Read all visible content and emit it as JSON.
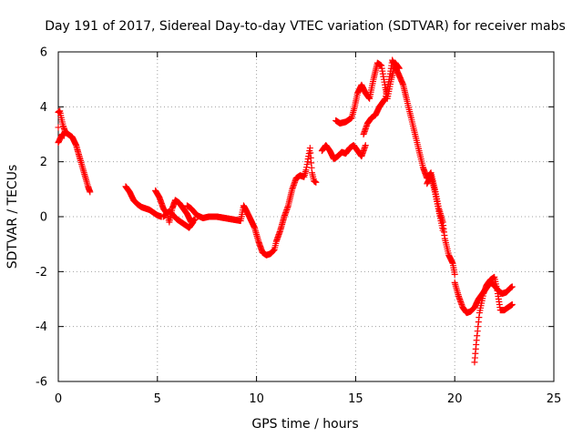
{
  "chart_data": {
    "type": "scatter",
    "title": "Day 191 of 2017, Sidereal Day-to-day VTEC variation (SDTVAR) for receiver mabs",
    "xlabel": "GPS time / hours",
    "ylabel": "SDTVAR / TECUs",
    "xlim": [
      0,
      25
    ],
    "ylim": [
      -6,
      6
    ],
    "xticks": [
      "0",
      "5",
      "10",
      "15",
      "20",
      "25"
    ],
    "yticks": [
      "-6",
      "-4",
      "-2",
      "0",
      "2",
      "4",
      "6"
    ],
    "grid": true,
    "marker": "+",
    "color": "#ff0000",
    "series": [
      {
        "segments": [
          [
            [
              0.0,
              2.7
            ],
            [
              0.0,
              3.8
            ],
            [
              0.08,
              3.85
            ],
            [
              0.15,
              3.6
            ],
            [
              0.25,
              3.3
            ],
            [
              0.35,
              3.1
            ],
            [
              0.5,
              3.0
            ],
            [
              0.7,
              2.9
            ],
            [
              0.9,
              2.6
            ],
            [
              1.1,
              2.1
            ],
            [
              1.3,
              1.6
            ],
            [
              1.5,
              1.1
            ],
            [
              1.6,
              0.9
            ]
          ],
          [
            [
              0.0,
              2.7
            ],
            [
              0.1,
              2.85
            ],
            [
              0.2,
              3.0
            ],
            [
              0.3,
              2.95
            ]
          ],
          [
            [
              3.4,
              1.1
            ],
            [
              3.6,
              0.9
            ],
            [
              3.8,
              0.6
            ],
            [
              4.0,
              0.45
            ],
            [
              4.2,
              0.35
            ],
            [
              4.4,
              0.3
            ],
            [
              4.6,
              0.25
            ],
            [
              4.8,
              0.15
            ],
            [
              5.0,
              0.05
            ],
            [
              5.2,
              0.0
            ]
          ],
          [
            [
              4.9,
              0.95
            ],
            [
              5.1,
              0.7
            ],
            [
              5.3,
              0.3
            ],
            [
              5.5,
              0.1
            ],
            [
              5.6,
              -0.2
            ],
            [
              5.75,
              0.3
            ],
            [
              5.9,
              0.6
            ],
            [
              6.1,
              0.5
            ],
            [
              6.3,
              0.3
            ],
            [
              6.5,
              0.1
            ],
            [
              6.7,
              -0.2
            ],
            [
              6.9,
              -0.1
            ]
          ],
          [
            [
              5.3,
              0.0
            ],
            [
              5.6,
              0.2
            ],
            [
              6.0,
              -0.1
            ],
            [
              6.4,
              -0.3
            ],
            [
              6.6,
              -0.4
            ],
            [
              6.8,
              -0.2
            ]
          ],
          [
            [
              6.5,
              0.4
            ],
            [
              6.7,
              0.3
            ],
            [
              7.0,
              0.05
            ],
            [
              7.3,
              -0.05
            ],
            [
              7.6,
              0.0
            ],
            [
              8.0,
              0.0
            ],
            [
              8.4,
              -0.05
            ],
            [
              8.8,
              -0.1
            ],
            [
              9.2,
              -0.15
            ],
            [
              9.35,
              0.4
            ],
            [
              9.5,
              0.2
            ],
            [
              9.7,
              -0.1
            ],
            [
              9.9,
              -0.4
            ]
          ],
          [
            [
              9.9,
              -0.4
            ],
            [
              10.1,
              -0.9
            ],
            [
              10.3,
              -1.3
            ],
            [
              10.5,
              -1.4
            ],
            [
              10.7,
              -1.35
            ],
            [
              10.9,
              -1.2
            ],
            [
              11.0,
              -0.9
            ],
            [
              11.2,
              -0.5
            ],
            [
              11.4,
              0.0
            ],
            [
              11.6,
              0.4
            ],
            [
              11.8,
              1.0
            ],
            [
              12.0,
              1.4
            ],
            [
              12.2,
              1.5
            ],
            [
              12.4,
              1.45
            ],
            [
              12.5,
              1.7
            ],
            [
              12.6,
              2.1
            ],
            [
              12.7,
              2.5
            ],
            [
              12.8,
              1.6
            ],
            [
              12.9,
              1.3
            ],
            [
              13.0,
              1.25
            ]
          ],
          [
            [
              13.3,
              2.4
            ],
            [
              13.5,
              2.6
            ],
            [
              13.7,
              2.4
            ],
            [
              13.9,
              2.1
            ],
            [
              14.1,
              2.2
            ],
            [
              14.3,
              2.35
            ],
            [
              14.5,
              2.3
            ],
            [
              14.7,
              2.5
            ],
            [
              14.9,
              2.6
            ],
            [
              15.1,
              2.4
            ],
            [
              15.3,
              2.2
            ],
            [
              15.5,
              2.6
            ]
          ],
          [
            [
              14.0,
              3.5
            ],
            [
              14.2,
              3.4
            ],
            [
              14.5,
              3.45
            ],
            [
              14.8,
              3.6
            ],
            [
              14.95,
              4.0
            ],
            [
              15.1,
              4.5
            ],
            [
              15.3,
              4.8
            ],
            [
              15.5,
              4.5
            ],
            [
              15.7,
              4.3
            ],
            [
              15.9,
              5.0
            ],
            [
              16.1,
              5.6
            ],
            [
              16.3,
              5.5
            ],
            [
              16.5,
              4.7
            ],
            [
              16.6,
              4.3
            ],
            [
              16.8,
              5.0
            ],
            [
              17.0,
              5.6
            ],
            [
              17.2,
              5.4
            ]
          ],
          [
            [
              15.4,
              3.0
            ],
            [
              15.6,
              3.4
            ],
            [
              15.8,
              3.6
            ],
            [
              16.0,
              3.7
            ],
            [
              16.2,
              4.0
            ],
            [
              16.5,
              4.3
            ],
            [
              16.7,
              5.0
            ],
            [
              16.85,
              5.7
            ],
            [
              17.1,
              5.3
            ],
            [
              17.4,
              4.8
            ],
            [
              17.6,
              4.2
            ],
            [
              17.8,
              3.6
            ],
            [
              18.0,
              3.0
            ],
            [
              18.2,
              2.4
            ],
            [
              18.4,
              1.8
            ],
            [
              18.6,
              1.4
            ],
            [
              18.8,
              1.6
            ],
            [
              19.0,
              1.0
            ],
            [
              19.2,
              0.3
            ],
            [
              19.4,
              -0.2
            ],
            [
              19.5,
              -0.8
            ],
            [
              19.7,
              -1.4
            ],
            [
              19.9,
              -1.7
            ],
            [
              20.0,
              -2.1
            ]
          ],
          [
            [
              18.6,
              1.2
            ],
            [
              18.8,
              1.5
            ],
            [
              19.0,
              0.9
            ],
            [
              19.2,
              0.2
            ],
            [
              19.4,
              -0.5
            ]
          ],
          [
            [
              20.0,
              -2.4
            ],
            [
              20.2,
              -2.9
            ],
            [
              20.4,
              -3.3
            ],
            [
              20.6,
              -3.5
            ],
            [
              20.8,
              -3.45
            ],
            [
              21.0,
              -3.3
            ],
            [
              21.2,
              -3.0
            ],
            [
              21.4,
              -2.8
            ],
            [
              21.6,
              -2.6
            ],
            [
              21.8,
              -2.4
            ],
            [
              22.0,
              -2.5
            ],
            [
              22.2,
              -2.7
            ],
            [
              22.4,
              -2.8
            ],
            [
              22.6,
              -2.75
            ],
            [
              22.8,
              -2.6
            ],
            [
              22.9,
              -2.55
            ]
          ],
          [
            [
              21.0,
              -5.3
            ],
            [
              21.1,
              -4.5
            ],
            [
              21.25,
              -3.5
            ],
            [
              21.45,
              -2.8
            ],
            [
              21.6,
              -2.5
            ],
            [
              21.8,
              -2.3
            ],
            [
              22.0,
              -2.2
            ],
            [
              22.15,
              -2.7
            ],
            [
              22.3,
              -3.4
            ],
            [
              22.5,
              -3.4
            ],
            [
              22.7,
              -3.3
            ],
            [
              22.9,
              -3.2
            ]
          ]
        ]
      }
    ]
  }
}
